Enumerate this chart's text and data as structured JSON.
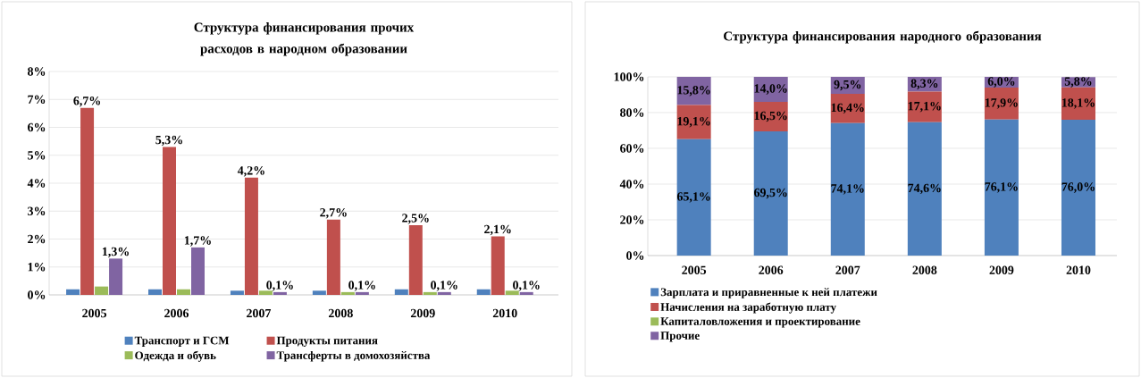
{
  "chart_data": [
    {
      "type": "bar",
      "title": "Структура финансирования прочих расходов в народном образовании",
      "categories": [
        "2005",
        "2006",
        "2007",
        "2008",
        "2009",
        "2010"
      ],
      "series": [
        {
          "name": "Транспорт и ГСМ",
          "color": "#4f81bd",
          "values": [
            0.2,
            0.2,
            0.15,
            0.15,
            0.2,
            0.2
          ]
        },
        {
          "name": "Продукты питания",
          "color": "#c0504d",
          "values": [
            6.7,
            5.3,
            4.2,
            2.7,
            2.5,
            2.1
          ],
          "value_labels": [
            "6,7%",
            "5,3%",
            "4,2%",
            "2,7%",
            "2,5%",
            "2,1%"
          ]
        },
        {
          "name": "Одежда и обувь",
          "color": "#9bbb59",
          "values": [
            0.3,
            0.2,
            0.15,
            0.1,
            0.1,
            0.15
          ]
        },
        {
          "name": "Трансферты в домохозяйства",
          "color": "#8064a2",
          "values": [
            1.3,
            1.7,
            0.1,
            0.1,
            0.1,
            0.1
          ],
          "value_labels": [
            "1,3%",
            "1,7%",
            "0,1%",
            "0,1%",
            "0,1%",
            "0,1%"
          ]
        }
      ],
      "ylim": [
        0,
        8
      ],
      "yticks": [
        {
          "value": 0,
          "label": "0%"
        },
        {
          "value": 1,
          "label": "1%"
        },
        {
          "value": 2,
          "label": "2%"
        },
        {
          "value": 3,
          "label": "3%"
        },
        {
          "value": 4,
          "label": "4%"
        },
        {
          "value": 5,
          "label": "5%"
        },
        {
          "value": 6,
          "label": "6%"
        },
        {
          "value": 7,
          "label": "7%"
        },
        {
          "value": 8,
          "label": "8%"
        }
      ],
      "grid": "y",
      "legend": "bottom"
    },
    {
      "type": "bar",
      "stacked": true,
      "title": "Структура финансирования народного образования",
      "categories": [
        "2005",
        "2006",
        "2007",
        "2008",
        "2009",
        "2010"
      ],
      "series": [
        {
          "name": "Зарплата и приравненные к ней платежи",
          "color": "#4f81bd",
          "values": [
            65.1,
            69.5,
            74.1,
            74.6,
            76.1,
            76.0
          ],
          "value_labels": [
            "65,1%",
            "69,5%",
            "74,1%",
            "74,6%",
            "76,1%",
            "76,0%"
          ]
        },
        {
          "name": "Начисления на заработную плату",
          "color": "#c0504d",
          "values": [
            19.1,
            16.5,
            16.4,
            17.1,
            17.9,
            18.1
          ],
          "value_labels": [
            "19,1%",
            "16,5%",
            "16,4%",
            "17,1%",
            "17,9%",
            "18,1%"
          ]
        },
        {
          "name": "Капиталовложения и проектирование",
          "color": "#9bbb59",
          "values": [
            0,
            0,
            0,
            0,
            0,
            0
          ]
        },
        {
          "name": "Прочие",
          "color": "#8064a2",
          "values": [
            15.8,
            14.0,
            9.5,
            8.3,
            6.0,
            5.8
          ],
          "value_labels": [
            "15,8%",
            "14,0%",
            "9,5%",
            "8,3%",
            "6,0%",
            "5,8%"
          ]
        }
      ],
      "ylim": [
        0,
        100
      ],
      "yticks": [
        {
          "value": 0,
          "label": "0%"
        },
        {
          "value": 20,
          "label": "20%"
        },
        {
          "value": 40,
          "label": "40%"
        },
        {
          "value": 60,
          "label": "60%"
        },
        {
          "value": 80,
          "label": "80%"
        },
        {
          "value": 100,
          "label": "100%"
        }
      ],
      "grid": "y",
      "legend": "bottom"
    }
  ]
}
